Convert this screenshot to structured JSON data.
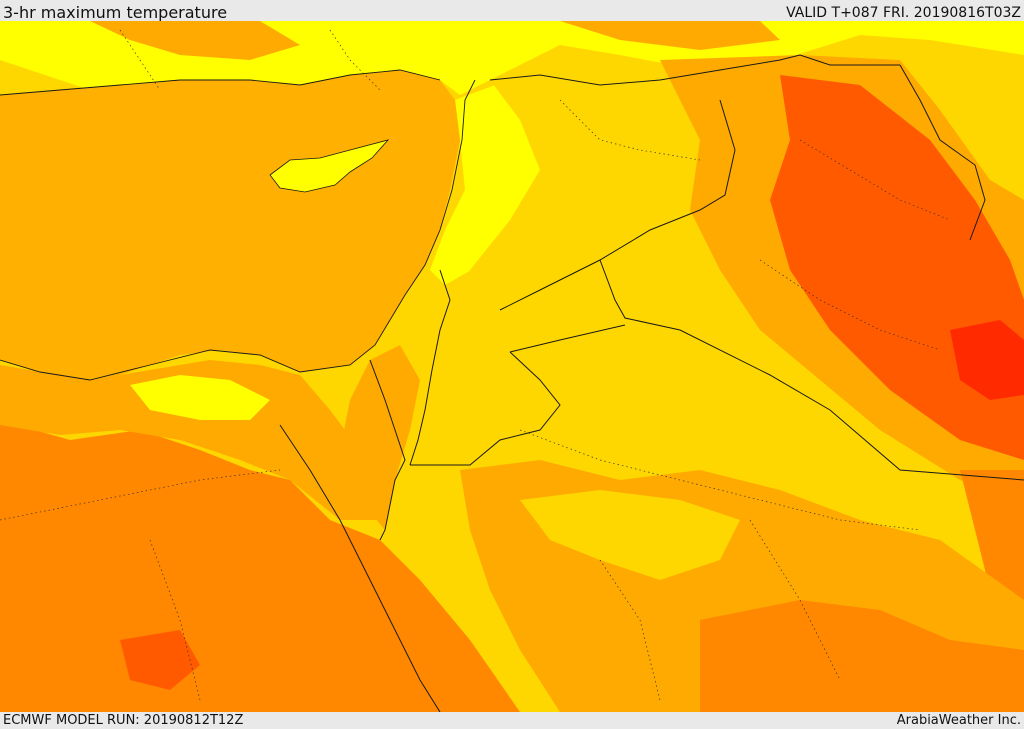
{
  "header": {
    "title": "3-hr maximum temperature",
    "valid": "VALID T+087 FRI. 20190816T03Z"
  },
  "footer": {
    "model_run": "ECMWF MODEL RUN: 20190812T12Z",
    "credit": "ArabiaWeather Inc."
  },
  "map": {
    "palette": {
      "yellow": "#ffff00",
      "gold": "#ffd700",
      "amber": "#ffaa00",
      "orange": "#ff8800",
      "deep_orange": "#ff5a00",
      "red": "#ff2a00",
      "sea": "#ffb000"
    },
    "border_color": "#1a1a1a"
  }
}
